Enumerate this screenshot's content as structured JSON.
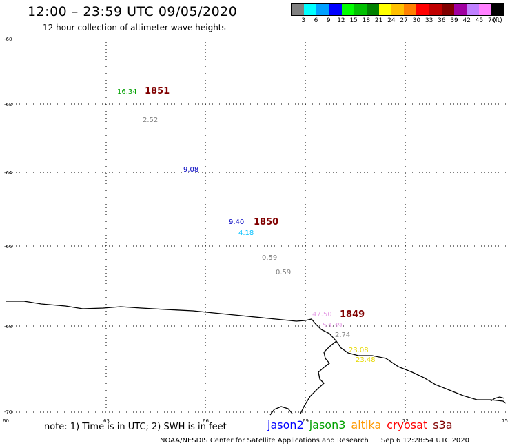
{
  "header": {
    "title": "12:00 – 23:59 UTC 09/05/2020",
    "subtitle": "12 hour collection of altimeter wave heights"
  },
  "scale": {
    "colors": [
      "#808080",
      "#00ffff",
      "#00a0ff",
      "#0000ff",
      "#00ff00",
      "#00c000",
      "#008000",
      "#ffff00",
      "#ffc000",
      "#ff8000",
      "#ff0000",
      "#c00000",
      "#800000",
      "#a000a0",
      "#c080ff",
      "#ff80ff",
      "#000000"
    ],
    "labels": [
      "3",
      "6",
      "9",
      "12",
      "15",
      "18",
      "21",
      "24",
      "27",
      "30",
      "33",
      "36",
      "39",
      "42",
      "45",
      "70"
    ],
    "unit": "(ft)"
  },
  "axes": {
    "lat_labels": [
      "-60",
      "-62",
      "-64",
      "-66",
      "-68",
      "-70"
    ],
    "lon_labels": [
      "60",
      "63",
      "66",
      "69",
      "72",
      "75"
    ]
  },
  "observations": [
    {
      "text": "16.34",
      "color": "#00a000",
      "bold": false
    },
    {
      "text": "1851",
      "color": "#800000",
      "bold": true
    },
    {
      "text": "2.52",
      "color": "#808080",
      "bold": false
    },
    {
      "text": "9.08",
      "color": "#0000c0",
      "bold": false
    },
    {
      "text": "9.40",
      "color": "#0000c0",
      "bold": false
    },
    {
      "text": "1850",
      "color": "#800000",
      "bold": true
    },
    {
      "text": "4.18",
      "color": "#00c0ff",
      "bold": false
    },
    {
      "text": "0.59",
      "color": "#808080",
      "bold": false
    },
    {
      "text": "0.59",
      "color": "#808080",
      "bold": false
    },
    {
      "text": "47.50",
      "color": "#e6a0e6",
      "bold": false
    },
    {
      "text": "1849",
      "color": "#800000",
      "bold": true
    },
    {
      "text": "53.39",
      "color": "#e6a0e6",
      "bold": false
    },
    {
      "text": "2.74",
      "color": "#808080",
      "bold": false
    },
    {
      "text": "23.08",
      "color": "#e6d800",
      "bold": false
    },
    {
      "text": "23.48",
      "color": "#e6d800",
      "bold": false
    }
  ],
  "note": "note: 1) Time is in UTC; 2) SWH is in feet",
  "satellites": [
    {
      "name": "jason2",
      "color": "#0000ff"
    },
    {
      "name": "jason3",
      "color": "#00a000"
    },
    {
      "name": "altika",
      "color": "#ff9900"
    },
    {
      "name": "cryosat",
      "color": "#ff0000"
    },
    {
      "name": "s3a",
      "color": "#800000"
    }
  ],
  "footer": {
    "agency": "NOAA/NESDIS Center for Satellite Applications and Research",
    "timestamp": "Sep 6 12:28:54 UTC 2020"
  }
}
